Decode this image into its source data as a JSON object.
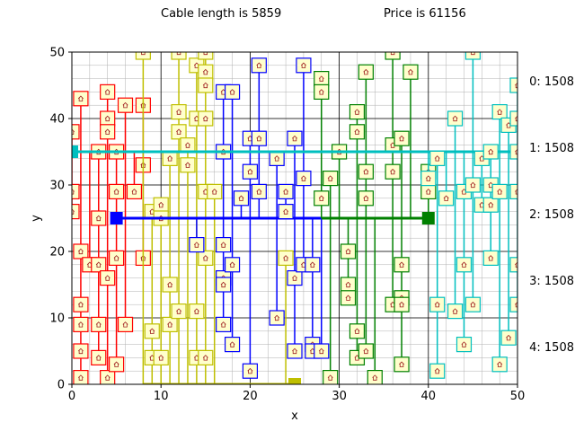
{
  "header": {
    "cable_text": "Cable length is 5859",
    "price_text": "Price is 61156"
  },
  "chart_data": {
    "type": "scatter",
    "xlabel": "x",
    "ylabel": "y",
    "xlim": [
      0,
      50
    ],
    "ylim": [
      0,
      50
    ],
    "xticks": [
      0,
      10,
      20,
      30,
      40,
      50
    ],
    "yticks": [
      0,
      10,
      20,
      30,
      40,
      50
    ],
    "grid": "major and minor",
    "house_icon": "house-icon",
    "series": [
      {
        "name": "0: 1508",
        "color": "#ff0000",
        "hub": [
          0,
          35
        ],
        "houses": [
          [
            0,
            38
          ],
          [
            1,
            43
          ],
          [
            0,
            29
          ],
          [
            0,
            26
          ],
          [
            1,
            20
          ],
          [
            1,
            12
          ],
          [
            1,
            9
          ],
          [
            1,
            5
          ],
          [
            1,
            1
          ],
          [
            2,
            18
          ],
          [
            3,
            35
          ],
          [
            3,
            25
          ],
          [
            3,
            18
          ],
          [
            3,
            9
          ],
          [
            3,
            4
          ],
          [
            4,
            1
          ],
          [
            4,
            44
          ],
          [
            4,
            40
          ],
          [
            4,
            38
          ],
          [
            4,
            16
          ],
          [
            5,
            35
          ],
          [
            5,
            29
          ],
          [
            5,
            19
          ],
          [
            5,
            3
          ],
          [
            6,
            42
          ],
          [
            6,
            9
          ],
          [
            7,
            29
          ],
          [
            8,
            42
          ],
          [
            8,
            33
          ],
          [
            8,
            19
          ]
        ]
      },
      {
        "name": "1: 1508",
        "color": "#bfbf00",
        "hub": [
          25,
          0
        ],
        "houses": [
          [
            8,
            50
          ],
          [
            9,
            26
          ],
          [
            9,
            8
          ],
          [
            9,
            4
          ],
          [
            10,
            27
          ],
          [
            10,
            25
          ],
          [
            10,
            4
          ],
          [
            11,
            34
          ],
          [
            11,
            15
          ],
          [
            11,
            9
          ],
          [
            12,
            50
          ],
          [
            12,
            41
          ],
          [
            12,
            38
          ],
          [
            12,
            11
          ],
          [
            13,
            36
          ],
          [
            13,
            33
          ],
          [
            14,
            48
          ],
          [
            14,
            40
          ],
          [
            14,
            11
          ],
          [
            14,
            4
          ],
          [
            15,
            50
          ],
          [
            15,
            47
          ],
          [
            15,
            45
          ],
          [
            15,
            40
          ],
          [
            15,
            29
          ],
          [
            15,
            19
          ],
          [
            15,
            4
          ],
          [
            16,
            29
          ],
          [
            24,
            19
          ]
        ]
      },
      {
        "name": "2: 1508",
        "color": "#0000ff",
        "hub": [
          5,
          25
        ],
        "houses": [
          [
            14,
            21
          ],
          [
            17,
            44
          ],
          [
            17,
            35
          ],
          [
            17,
            21
          ],
          [
            17,
            16
          ],
          [
            17,
            15
          ],
          [
            17,
            9
          ],
          [
            18,
            44
          ],
          [
            18,
            18
          ],
          [
            18,
            6
          ],
          [
            19,
            28
          ],
          [
            20,
            37
          ],
          [
            20,
            32
          ],
          [
            20,
            2
          ],
          [
            21,
            48
          ],
          [
            21,
            37
          ],
          [
            21,
            29
          ],
          [
            23,
            34
          ],
          [
            23,
            10
          ],
          [
            24,
            29
          ],
          [
            24,
            26
          ],
          [
            25,
            37
          ],
          [
            25,
            16
          ],
          [
            25,
            5
          ],
          [
            26,
            48
          ],
          [
            26,
            31
          ],
          [
            26,
            18
          ],
          [
            27,
            18
          ],
          [
            27,
            6
          ],
          [
            27,
            5
          ],
          [
            28,
            5
          ]
        ]
      },
      {
        "name": "3: 1508",
        "color": "#008000",
        "hub": [
          40,
          25
        ],
        "houses": [
          [
            28,
            46
          ],
          [
            28,
            44
          ],
          [
            28,
            28
          ],
          [
            29,
            31
          ],
          [
            29,
            1
          ],
          [
            30,
            35
          ],
          [
            31,
            20
          ],
          [
            31,
            15
          ],
          [
            31,
            13
          ],
          [
            32,
            41
          ],
          [
            32,
            38
          ],
          [
            32,
            8
          ],
          [
            32,
            4
          ],
          [
            33,
            47
          ],
          [
            33,
            32
          ],
          [
            33,
            28
          ],
          [
            33,
            5
          ],
          [
            34,
            1
          ],
          [
            36,
            50
          ],
          [
            36,
            36
          ],
          [
            36,
            32
          ],
          [
            36,
            12
          ],
          [
            37,
            37
          ],
          [
            37,
            18
          ],
          [
            37,
            13
          ],
          [
            37,
            12
          ],
          [
            37,
            3
          ],
          [
            38,
            47
          ],
          [
            40,
            32
          ],
          [
            40,
            29
          ]
        ]
      },
      {
        "name": "4: 1508",
        "color": "#00bfbf",
        "hub": [
          0,
          35
        ],
        "houses": [
          [
            40,
            31
          ],
          [
            41,
            34
          ],
          [
            41,
            12
          ],
          [
            41,
            2
          ],
          [
            42,
            28
          ],
          [
            43,
            40
          ],
          [
            43,
            11
          ],
          [
            44,
            29
          ],
          [
            44,
            18
          ],
          [
            44,
            6
          ],
          [
            45,
            50
          ],
          [
            45,
            30
          ],
          [
            45,
            12
          ],
          [
            46,
            34
          ],
          [
            46,
            27
          ],
          [
            47,
            35
          ],
          [
            47,
            30
          ],
          [
            47,
            27
          ],
          [
            47,
            19
          ],
          [
            48,
            41
          ],
          [
            48,
            29
          ],
          [
            48,
            3
          ],
          [
            49,
            39
          ],
          [
            49,
            7
          ],
          [
            50,
            45
          ],
          [
            50,
            40
          ],
          [
            50,
            35
          ],
          [
            50,
            29
          ],
          [
            50,
            18
          ],
          [
            50,
            12
          ]
        ]
      }
    ]
  }
}
